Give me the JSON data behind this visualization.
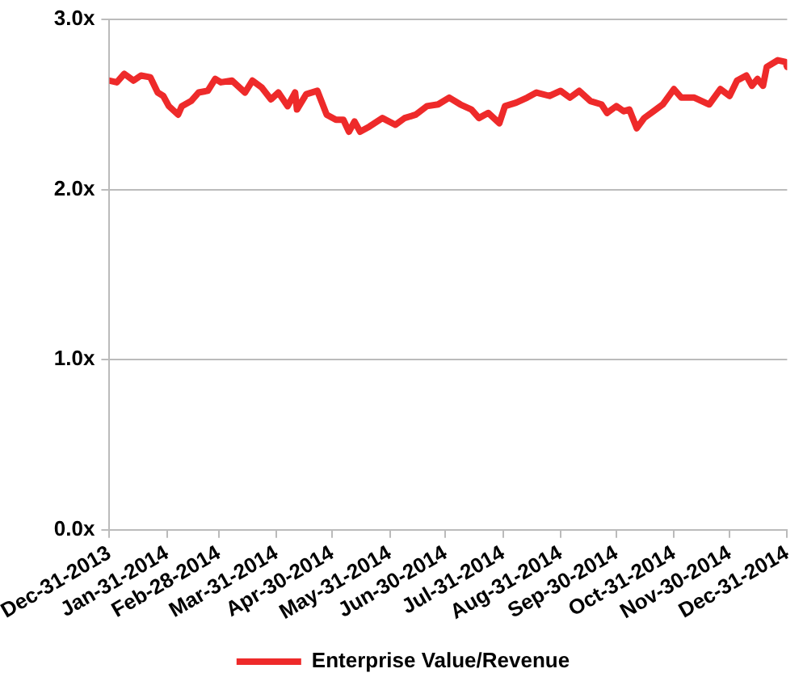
{
  "chart_data": {
    "type": "line",
    "x": [
      "2013-12-31",
      "2014-01-04",
      "2014-01-08",
      "2014-01-13",
      "2014-01-17",
      "2014-01-22",
      "2014-01-26",
      "2014-01-29",
      "2014-02-01",
      "2014-02-06",
      "2014-02-08",
      "2014-02-13",
      "2014-02-17",
      "2014-02-22",
      "2014-02-26",
      "2014-03-01",
      "2014-03-07",
      "2014-03-14",
      "2014-03-18",
      "2014-03-23",
      "2014-03-28",
      "2014-04-01",
      "2014-04-06",
      "2014-04-10",
      "2014-04-11",
      "2014-04-16",
      "2014-04-22",
      "2014-04-27",
      "2014-05-02",
      "2014-05-06",
      "2014-05-09",
      "2014-05-12",
      "2014-05-15",
      "2014-05-20",
      "2014-05-27",
      "2014-06-03",
      "2014-06-08",
      "2014-06-14",
      "2014-06-20",
      "2014-06-26",
      "2014-07-02",
      "2014-07-08",
      "2014-07-14",
      "2014-07-18",
      "2014-07-23",
      "2014-07-29",
      "2014-08-01",
      "2014-08-07",
      "2014-08-13",
      "2014-08-18",
      "2014-08-25",
      "2014-08-31",
      "2014-09-05",
      "2014-09-10",
      "2014-09-16",
      "2014-09-22",
      "2014-09-25",
      "2014-09-30",
      "2014-10-04",
      "2014-10-07",
      "2014-10-11",
      "2014-10-15",
      "2014-10-20",
      "2014-10-25",
      "2014-10-31",
      "2014-11-04",
      "2014-11-11",
      "2014-11-19",
      "2014-11-25",
      "2014-11-30",
      "2014-12-04",
      "2014-12-09",
      "2014-12-12",
      "2014-12-15",
      "2014-12-18",
      "2014-12-20",
      "2014-12-26",
      "2014-12-30",
      "2014-12-31"
    ],
    "series": [
      {
        "name": "Enterprise Value/Revenue",
        "color": "#ee2a2a",
        "values": [
          2.64,
          2.63,
          2.68,
          2.64,
          2.67,
          2.66,
          2.57,
          2.55,
          2.49,
          2.44,
          2.49,
          2.52,
          2.57,
          2.58,
          2.65,
          2.63,
          2.64,
          2.57,
          2.64,
          2.6,
          2.53,
          2.57,
          2.49,
          2.57,
          2.47,
          2.56,
          2.58,
          2.44,
          2.41,
          2.41,
          2.34,
          2.4,
          2.34,
          2.37,
          2.42,
          2.38,
          2.42,
          2.44,
          2.49,
          2.5,
          2.54,
          2.5,
          2.47,
          2.42,
          2.45,
          2.39,
          2.49,
          2.51,
          2.54,
          2.57,
          2.55,
          2.58,
          2.54,
          2.58,
          2.52,
          2.5,
          2.45,
          2.49,
          2.46,
          2.47,
          2.36,
          2.42,
          2.46,
          2.5,
          2.59,
          2.54,
          2.54,
          2.5,
          2.59,
          2.55,
          2.64,
          2.67,
          2.61,
          2.65,
          2.61,
          2.72,
          2.76,
          2.75,
          2.72
        ]
      }
    ],
    "xlim": [
      "2013-12-31",
      "2014-12-31"
    ],
    "xticks": [
      {
        "value": "2013-12-31",
        "label": "Dec-31-2013"
      },
      {
        "value": "2014-01-31",
        "label": "Jan-31-2014"
      },
      {
        "value": "2014-02-28",
        "label": "Feb-28-2014"
      },
      {
        "value": "2014-03-31",
        "label": "Mar-31-2014"
      },
      {
        "value": "2014-04-30",
        "label": "Apr-30-2014"
      },
      {
        "value": "2014-05-31",
        "label": "May-31-2014"
      },
      {
        "value": "2014-06-30",
        "label": "Jun-30-2014"
      },
      {
        "value": "2014-07-31",
        "label": "Jul-31-2014"
      },
      {
        "value": "2014-08-31",
        "label": "Aug-31-2014"
      },
      {
        "value": "2014-09-30",
        "label": "Sep-30-2014"
      },
      {
        "value": "2014-10-31",
        "label": "Oct-31-2014"
      },
      {
        "value": "2014-11-30",
        "label": "Nov-30-2014"
      },
      {
        "value": "2014-12-31",
        "label": "Dec-31-2014"
      }
    ],
    "ylim": [
      0,
      3
    ],
    "yticks": [
      {
        "value": 0,
        "label": "0.0x"
      },
      {
        "value": 1,
        "label": "1.0x"
      },
      {
        "value": 2,
        "label": "2.0x"
      },
      {
        "value": 3,
        "label": "3.0x"
      }
    ],
    "grid": "y",
    "legend": "bottom",
    "marker": "none",
    "line_style": "solid"
  }
}
